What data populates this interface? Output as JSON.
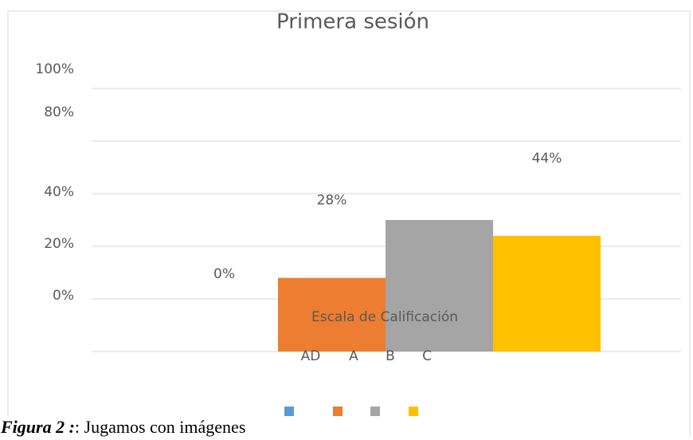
{
  "chart_data": {
    "type": "bar",
    "title": "Primera sesión",
    "x_label": "Escala de Calificación",
    "categories": [
      "AD",
      "A",
      "B",
      "C"
    ],
    "values": [
      0,
      28,
      50,
      44
    ],
    "value_labels": [
      "0%",
      "28%",
      null,
      "44%"
    ],
    "colors": [
      "#5b9bd5",
      "#ed7d31",
      "#a5a5a5",
      "#ffc000"
    ],
    "ylim": [
      0,
      100
    ],
    "yticks": [
      {
        "value": 0,
        "label": "0%"
      },
      {
        "value": 20,
        "label": "20%"
      },
      {
        "value": 40,
        "label": "40%"
      },
      {
        "value": 80,
        "label": "80%"
      },
      {
        "value": 100,
        "label": "100%"
      }
    ],
    "gridlines": [
      0,
      20,
      40,
      60,
      80,
      100
    ],
    "legend": "bottom"
  },
  "caption": {
    "label": "Figura 2 :",
    "text": ": Jugamos con imágenes"
  }
}
